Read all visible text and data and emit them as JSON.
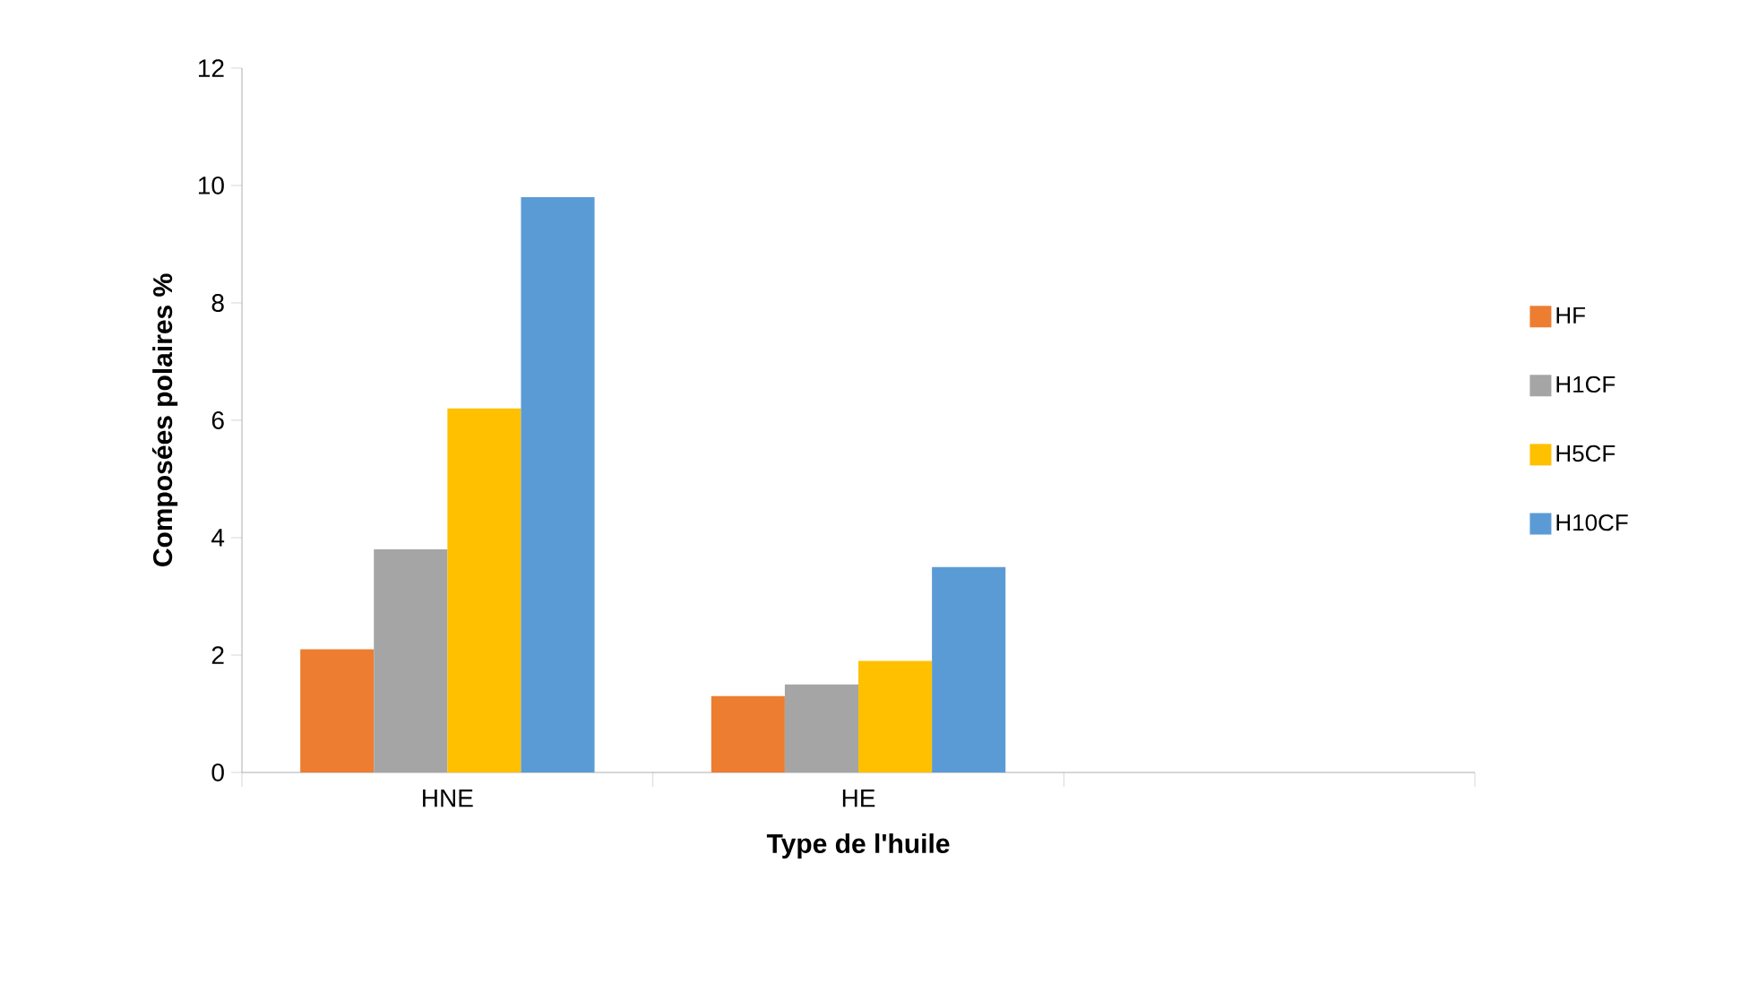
{
  "chart_data": {
    "type": "bar",
    "xlabel": "Type de l'huile",
    "ylabel": "Composées polaires %",
    "categories": [
      "HNE",
      "HE",
      null
    ],
    "series": [
      {
        "name": "HF",
        "color": "#ed7d31",
        "values": [
          2.1,
          1.3,
          null
        ]
      },
      {
        "name": "H1CF",
        "color": "#a5a5a5",
        "values": [
          3.8,
          1.5,
          null
        ]
      },
      {
        "name": "H5CF",
        "color": "#ffc000",
        "values": [
          6.2,
          1.9,
          null
        ]
      },
      {
        "name": "H10CF",
        "color": "#5b9bd5",
        "values": [
          9.8,
          3.5,
          null
        ]
      }
    ],
    "ylim": [
      0,
      12
    ],
    "yticks": [
      0,
      2,
      4,
      6,
      8,
      10,
      12
    ],
    "grid": false,
    "legend": "right"
  }
}
